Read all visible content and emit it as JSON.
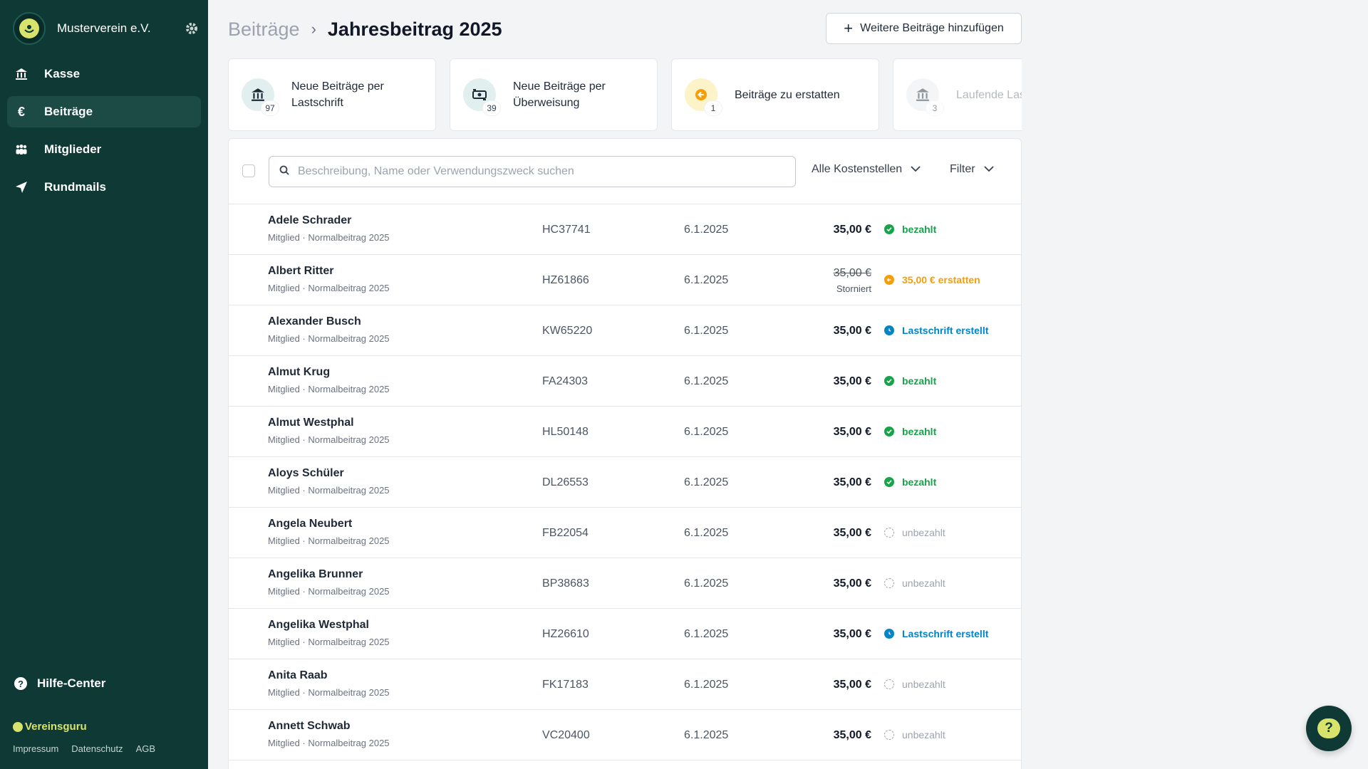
{
  "sidebar": {
    "org_name": "Musterverein e.V.",
    "nav": [
      {
        "label": "Kasse",
        "icon": "bank-icon"
      },
      {
        "label": "Beiträge",
        "icon": "euro-icon"
      },
      {
        "label": "Mitglieder",
        "icon": "members-icon"
      },
      {
        "label": "Rundmails",
        "icon": "send-icon"
      }
    ],
    "help_label": "Hilfe-Center",
    "brand": "Vereinsguru",
    "legal": [
      "Impressum",
      "Datenschutz",
      "AGB"
    ]
  },
  "header": {
    "parent": "Beiträge",
    "current": "Jahresbeitrag 2025",
    "add_button": "Weitere Beiträge hinzufügen"
  },
  "cards": [
    {
      "label": "Neue Beiträge per Lastschrift",
      "count": "97",
      "icon": "bank-icon",
      "color": "#e1f0ee"
    },
    {
      "label": "Neue Beiträge per Überweisung",
      "count": "39",
      "icon": "money-icon",
      "color": "#e1f0ee"
    },
    {
      "label": "Beiträge zu erstatten",
      "count": "1",
      "icon": "refund-icon",
      "color": "#fdf3c8"
    },
    {
      "label": "Laufende Lastschriften",
      "count": "3",
      "icon": "bank-icon",
      "color": "#eceeef"
    }
  ],
  "toolbar": {
    "search_placeholder": "Beschreibung, Name oder Verwendungszweck suchen",
    "cost_center": "Alle Kostenstellen",
    "filter": "Filter"
  },
  "rows": [
    {
      "name": "Adele Schrader",
      "sub": "Mitglied · Normalbeitrag 2025",
      "code": "HC37741",
      "date": "6.1.2025",
      "amount": "35,00 €",
      "status": "bezahlt",
      "type": "paid"
    },
    {
      "name": "Albert Ritter",
      "sub": "Mitglied · Normalbeitrag 2025",
      "code": "HZ61866",
      "date": "6.1.2025",
      "amount": "35,00 €",
      "storno": "Storniert",
      "status": "35,00 € erstatten",
      "type": "refund"
    },
    {
      "name": "Alexander Busch",
      "sub": "Mitglied · Normalbeitrag 2025",
      "code": "KW65220",
      "date": "6.1.2025",
      "amount": "35,00 €",
      "status": "Lastschrift erstellt",
      "type": "debit"
    },
    {
      "name": "Almut Krug",
      "sub": "Mitglied · Normalbeitrag 2025",
      "code": "FA24303",
      "date": "6.1.2025",
      "amount": "35,00 €",
      "status": "bezahlt",
      "type": "paid"
    },
    {
      "name": "Almut Westphal",
      "sub": "Mitglied · Normalbeitrag 2025",
      "code": "HL50148",
      "date": "6.1.2025",
      "amount": "35,00 €",
      "status": "bezahlt",
      "type": "paid"
    },
    {
      "name": "Aloys Schüler",
      "sub": "Mitglied · Normalbeitrag 2025",
      "code": "DL26553",
      "date": "6.1.2025",
      "amount": "35,00 €",
      "status": "bezahlt",
      "type": "paid"
    },
    {
      "name": "Angela Neubert",
      "sub": "Mitglied · Normalbeitrag 2025",
      "code": "FB22054",
      "date": "6.1.2025",
      "amount": "35,00 €",
      "status": "unbezahlt",
      "type": "unpaid"
    },
    {
      "name": "Angelika Brunner",
      "sub": "Mitglied · Normalbeitrag 2025",
      "code": "BP38683",
      "date": "6.1.2025",
      "amount": "35,00 €",
      "status": "unbezahlt",
      "type": "unpaid"
    },
    {
      "name": "Angelika Westphal",
      "sub": "Mitglied · Normalbeitrag 2025",
      "code": "HZ26610",
      "date": "6.1.2025",
      "amount": "35,00 €",
      "status": "Lastschrift erstellt",
      "type": "debit"
    },
    {
      "name": "Anita Raab",
      "sub": "Mitglied · Normalbeitrag 2025",
      "code": "FK17183",
      "date": "6.1.2025",
      "amount": "35,00 €",
      "status": "unbezahlt",
      "type": "unpaid"
    },
    {
      "name": "Annett Schwab",
      "sub": "Mitglied · Normalbeitrag 2025",
      "code": "VC20400",
      "date": "6.1.2025",
      "amount": "35,00 €",
      "status": "unbezahlt",
      "type": "unpaid"
    }
  ],
  "chat_icon": "help-chat-icon"
}
